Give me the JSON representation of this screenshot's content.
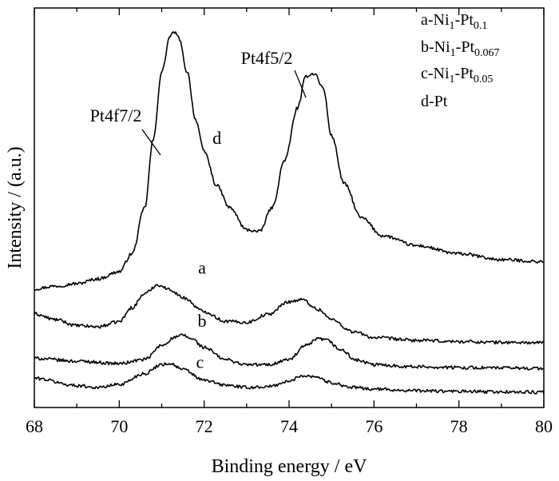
{
  "chart_data": {
    "type": "line",
    "title": "",
    "xlabel": "Binding energy / eV",
    "ylabel": "Intensity / (a.u.)",
    "xlim": [
      68,
      80
    ],
    "ylim": [
      0,
      1
    ],
    "x_ticks": [
      "68",
      "70",
      "72",
      "74",
      "76",
      "78",
      "80"
    ],
    "x_minor_step": 1,
    "y_ticks_shown": false,
    "grid": false,
    "legend_position": "top-right",
    "legend": [
      {
        "prefix": "a-Ni",
        "sub1": "1",
        "mid": "-Pt",
        "sub2": "0.1"
      },
      {
        "prefix": "b-Ni",
        "sub1": "1",
        "mid": "-Pt",
        "sub2": "0.067"
      },
      {
        "prefix": "c-Ni",
        "sub1": "1",
        "mid": "-Pt",
        "sub2": "0.05"
      },
      {
        "prefix": "d-Pt",
        "sub1": "",
        "mid": "",
        "sub2": ""
      }
    ],
    "annotations": [
      {
        "text": "Pt4f7/2",
        "x": 70.9,
        "y": 0.74
      },
      {
        "text": "Pt4f5/2",
        "x": 74.45,
        "y": 0.86
      }
    ],
    "series": [
      {
        "name": "d",
        "x": [
          68.0,
          68.5,
          69.0,
          69.5,
          70.0,
          70.3,
          70.6,
          70.8,
          71.0,
          71.2,
          71.3,
          71.4,
          71.6,
          71.8,
          72.0,
          72.3,
          72.6,
          73.0,
          73.3,
          73.6,
          73.9,
          74.2,
          74.4,
          74.6,
          74.8,
          75.0,
          75.3,
          75.7,
          76.2,
          77.0,
          78.0,
          79.0,
          80.0
        ],
        "y": [
          0.297,
          0.304,
          0.31,
          0.322,
          0.34,
          0.385,
          0.5,
          0.67,
          0.84,
          0.93,
          0.94,
          0.925,
          0.84,
          0.72,
          0.64,
          0.555,
          0.5,
          0.445,
          0.44,
          0.5,
          0.62,
          0.75,
          0.83,
          0.836,
          0.8,
          0.68,
          0.56,
          0.475,
          0.43,
          0.405,
          0.385,
          0.37,
          0.365
        ]
      },
      {
        "name": "a",
        "x": [
          68.0,
          68.5,
          69.0,
          69.5,
          70.0,
          70.3,
          70.6,
          70.9,
          71.2,
          71.5,
          72.0,
          72.5,
          73.0,
          73.5,
          74.0,
          74.3,
          74.7,
          75.0,
          75.5,
          76.0,
          77.0,
          78.0,
          79.0,
          80.0
        ],
        "y": [
          0.234,
          0.22,
          0.205,
          0.202,
          0.215,
          0.25,
          0.285,
          0.307,
          0.295,
          0.275,
          0.24,
          0.216,
          0.213,
          0.233,
          0.265,
          0.27,
          0.245,
          0.22,
          0.19,
          0.175,
          0.168,
          0.165,
          0.163,
          0.162
        ]
      },
      {
        "name": "b",
        "x": [
          68.0,
          69.0,
          70.0,
          70.6,
          71.0,
          71.3,
          71.5,
          71.7,
          72.0,
          72.5,
          73.0,
          73.5,
          74.0,
          74.4,
          74.7,
          74.9,
          75.2,
          75.6,
          76.0,
          77.0,
          78.0,
          79.0,
          80.0
        ],
        "y": [
          0.123,
          0.116,
          0.11,
          0.12,
          0.155,
          0.175,
          0.181,
          0.172,
          0.15,
          0.12,
          0.107,
          0.107,
          0.12,
          0.155,
          0.172,
          0.168,
          0.145,
          0.118,
          0.107,
          0.102,
          0.1,
          0.099,
          0.098
        ]
      },
      {
        "name": "c",
        "x": [
          68.0,
          69.0,
          69.5,
          70.0,
          70.6,
          71.0,
          71.2,
          71.5,
          72.0,
          72.5,
          73.0,
          73.5,
          74.0,
          74.3,
          74.6,
          75.0,
          75.5,
          76.0,
          77.0,
          78.0,
          79.0,
          80.0
        ],
        "y": [
          0.073,
          0.055,
          0.05,
          0.058,
          0.085,
          0.108,
          0.11,
          0.095,
          0.068,
          0.056,
          0.05,
          0.052,
          0.065,
          0.08,
          0.078,
          0.062,
          0.05,
          0.046,
          0.042,
          0.04,
          0.039,
          0.038
        ]
      }
    ],
    "curve_labels": [
      {
        "text": "d",
        "x": 72.3,
        "y": 0.66
      },
      {
        "text": "a",
        "x": 71.95,
        "y": 0.335
      },
      {
        "text": "b",
        "x": 71.95,
        "y": 0.202
      },
      {
        "text": "c",
        "x": 71.9,
        "y": 0.099
      }
    ]
  }
}
